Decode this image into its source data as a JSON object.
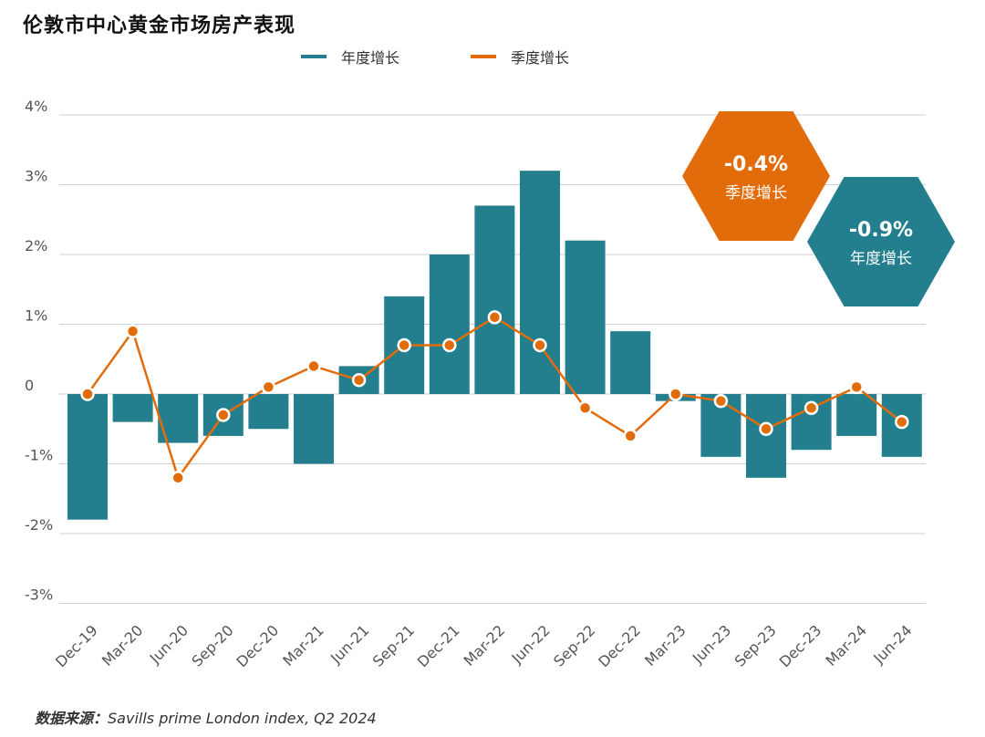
{
  "chart_data": {
    "type": "bar",
    "title": "伦敦市中心黄金市场房产表现",
    "categories": [
      "Dec-19",
      "Mar-20",
      "Jun-20",
      "Sep-20",
      "Dec-20",
      "Mar-21",
      "Jun-21",
      "Sep-21",
      "Dec-21",
      "Mar-22",
      "Jun-22",
      "Sep-22",
      "Dec-22",
      "Mar-23",
      "Jun-23",
      "Sep-23",
      "Dec-23",
      "Mar-24",
      "Jun-24"
    ],
    "series": [
      {
        "name": "年度增长",
        "type": "bar",
        "color": "#237E8E",
        "values": [
          -1.8,
          -0.4,
          -0.7,
          -0.6,
          -0.5,
          -1.0,
          0.4,
          1.4,
          2.0,
          2.7,
          3.2,
          2.2,
          0.9,
          -0.1,
          -0.9,
          -1.2,
          -0.8,
          -0.6,
          -0.9
        ]
      },
      {
        "name": "季度增长",
        "type": "line",
        "color": "#E36C0A",
        "values": [
          0.0,
          0.9,
          -1.2,
          -0.3,
          0.1,
          0.4,
          0.2,
          0.7,
          0.7,
          1.1,
          0.7,
          -0.2,
          -0.6,
          0.0,
          -0.1,
          -0.5,
          -0.2,
          0.1,
          -0.4
        ]
      }
    ],
    "yticks": [
      {
        "value": 4,
        "label": "4%"
      },
      {
        "value": 3,
        "label": "3%"
      },
      {
        "value": 2,
        "label": "2%"
      },
      {
        "value": 1,
        "label": "1%"
      },
      {
        "value": 0,
        "label": "0"
      },
      {
        "value": -1,
        "label": "-1%"
      },
      {
        "value": -2,
        "label": "-2%"
      },
      {
        "value": -3,
        "label": "-3%"
      }
    ],
    "ylim": [
      -3,
      4
    ],
    "xlabel": "",
    "ylabel": "",
    "grid": true,
    "legend_position": "top-center",
    "callouts": [
      {
        "value": "-0.4%",
        "label": "季度增长",
        "color": "#E36C0A"
      },
      {
        "value": "-0.9%",
        "label": "年度增长",
        "color": "#237E8E"
      }
    ]
  },
  "source": {
    "label": "数据来源：",
    "text": "Savills prime London index, Q2 2024"
  }
}
